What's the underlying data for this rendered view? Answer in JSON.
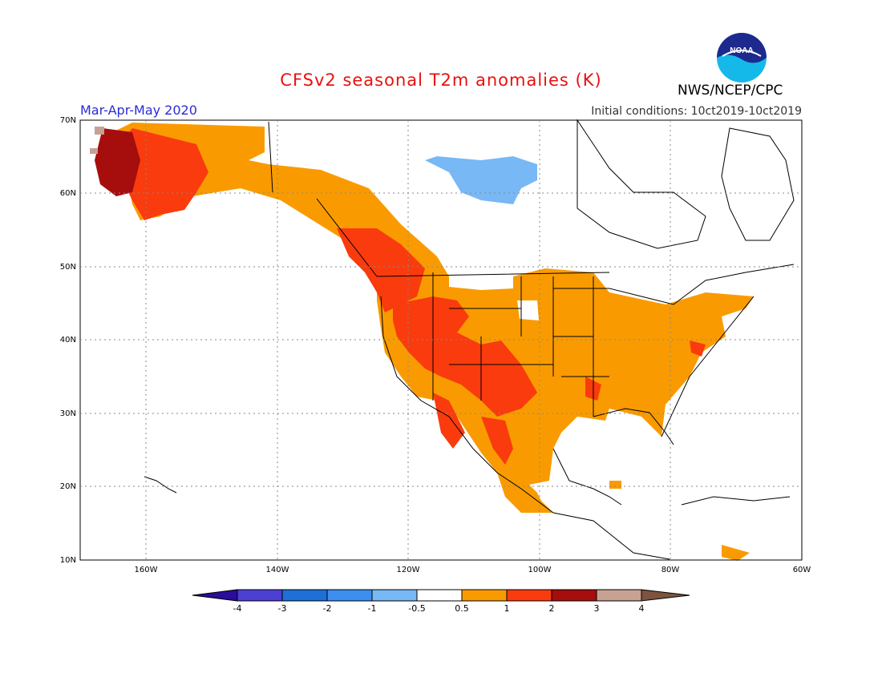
{
  "header": {
    "title": "CFSv2 seasonal T2m anomalies (K)",
    "season": "Mar-Apr-May 2020",
    "initial_conditions": "Initial conditions: 10ct2019-10ct2019",
    "org": "NWS/NCEP/CPC",
    "logo_text": "NOAA"
  },
  "map": {
    "lat_ticks": [
      "70N",
      "60N",
      "50N",
      "40N",
      "30N",
      "20N",
      "10N"
    ],
    "lon_ticks": [
      "160W",
      "140W",
      "120W",
      "100W",
      "80W",
      "60W"
    ],
    "extent": {
      "lon": [
        -171,
        -60
      ],
      "lat": [
        10,
        70
      ]
    }
  },
  "legend": {
    "labels": [
      "-4",
      "-3",
      "-2",
      "-1",
      "-0.5",
      "0.5",
      "1",
      "2",
      "3",
      "4"
    ],
    "colors": [
      "#2a0d9a",
      "#4c3fd3",
      "#1e6fd8",
      "#3c8ef0",
      "#78b8f5",
      "#ffffff",
      "#f99b00",
      "#f93b0e",
      "#a60d0d",
      "#c7a192",
      "#7d5340"
    ]
  }
}
